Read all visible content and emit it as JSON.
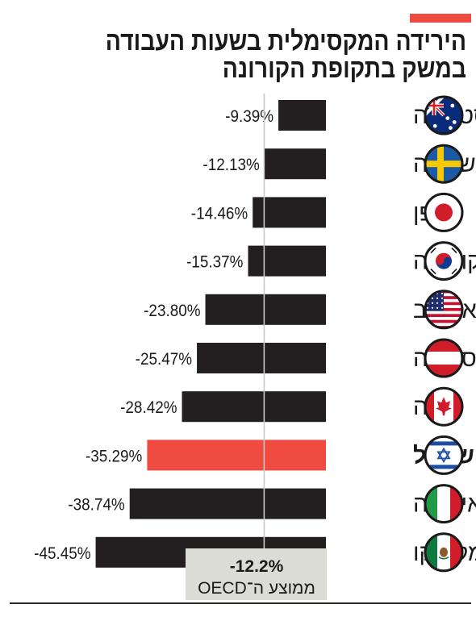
{
  "title_line1": "הירידה המקסימלית בשעות העבודה",
  "title_line2": "במשק בתקופת הקורונה",
  "colors": {
    "bar": "#231f20",
    "highlight": "#ef4b40",
    "accent": "#ef4b40",
    "average_box": "#dcdcd6"
  },
  "average": {
    "value_label": "-12.2%",
    "label": "ממוצע ה־OECD"
  },
  "chart_data": {
    "type": "bar",
    "orientation": "horizontal",
    "categories": [
      "אוסטרליה",
      "שוודיה",
      "יפן",
      "קוריאה",
      "ארה\"ב",
      "אוסטריה",
      "קנדה",
      "ישראל",
      "איטליה",
      "מקסיקו"
    ],
    "values": [
      -9.39,
      -12.13,
      -14.46,
      -15.37,
      -23.8,
      -25.47,
      -28.42,
      -35.29,
      -38.74,
      -45.45
    ],
    "value_labels": [
      "-9.39%",
      "-12.13%",
      "-14.46%",
      "-15.37%",
      "-23.80%",
      "-25.47%",
      "-28.42%",
      "-35.29%",
      "-38.74%",
      "-45.45%"
    ],
    "flags": [
      "australia-flag",
      "sweden-flag",
      "japan-flag",
      "korea-flag",
      "usa-flag",
      "austria-flag",
      "canada-flag",
      "israel-flag",
      "italy-flag",
      "mexico-flag"
    ],
    "highlight_category": "ישראל",
    "reference_line": {
      "value": -12.2
    },
    "xlim": [
      -50,
      0
    ],
    "title": "הירידה המקסימלית בשעות העבודה במשק בתקופת הקורונה",
    "xlabel": "",
    "ylabel": ""
  }
}
